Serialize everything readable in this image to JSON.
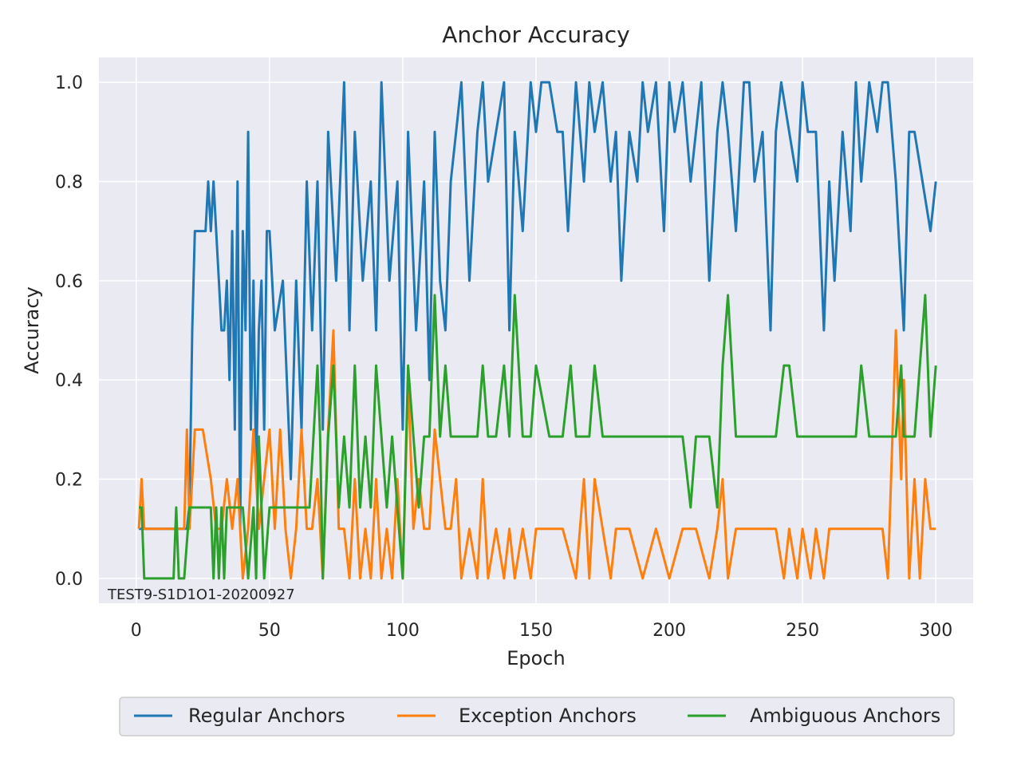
{
  "chart_data": {
    "type": "line",
    "title": "Anchor Accuracy",
    "xlabel": "Epoch",
    "ylabel": "Accuracy",
    "xlim": [
      -14,
      314
    ],
    "ylim": [
      -0.05,
      1.05
    ],
    "xticks": [
      0,
      50,
      100,
      150,
      200,
      250,
      300
    ],
    "yticks": [
      0.0,
      0.2,
      0.4,
      0.6,
      0.8,
      1.0
    ],
    "xtick_labels": [
      "0",
      "50",
      "100",
      "150",
      "200",
      "250",
      "300"
    ],
    "ytick_labels": [
      "0.0",
      "0.2",
      "0.4",
      "0.6",
      "0.8",
      "1.0"
    ],
    "grid": true,
    "legend_position": "bottom-center",
    "annotation": "TEST9-S1D1O1-20200927",
    "background": "#eaeaf2",
    "series": [
      {
        "name": "Regular Anchors",
        "color": "#1f77b4",
        "x": [
          1,
          3,
          6,
          10,
          14,
          16,
          18,
          19,
          20,
          21,
          22,
          23,
          24,
          25,
          26,
          27,
          28,
          29,
          30,
          31,
          32,
          33,
          34,
          35,
          36,
          37,
          38,
          39,
          40,
          41,
          42,
          43,
          44,
          45,
          46,
          47,
          48,
          49,
          50,
          52,
          55,
          58,
          60,
          62,
          64,
          66,
          68,
          70,
          72,
          75,
          78,
          80,
          82,
          85,
          88,
          90,
          92,
          95,
          98,
          100,
          102,
          105,
          108,
          110,
          112,
          114,
          116,
          118,
          120,
          122,
          125,
          128,
          130,
          132,
          135,
          138,
          140,
          142,
          145,
          148,
          150,
          152,
          155,
          158,
          160,
          162,
          165,
          168,
          170,
          172,
          175,
          178,
          180,
          182,
          185,
          188,
          190,
          192,
          195,
          198,
          200,
          202,
          205,
          208,
          210,
          212,
          215,
          218,
          220,
          222,
          225,
          228,
          230,
          232,
          235,
          238,
          240,
          242,
          245,
          248,
          250,
          252,
          255,
          258,
          260,
          262,
          265,
          268,
          270,
          272,
          275,
          278,
          280,
          282,
          285,
          288,
          290,
          292,
          295,
          298,
          300
        ],
        "y": [
          0.1,
          0.1,
          0.1,
          0.1,
          0.1,
          0.1,
          0.1,
          0.1,
          0.15,
          0.5,
          0.7,
          0.7,
          0.7,
          0.7,
          0.7,
          0.8,
          0.7,
          0.8,
          0.7,
          0.6,
          0.5,
          0.5,
          0.6,
          0.4,
          0.7,
          0.3,
          0.8,
          0.1,
          0.7,
          0.5,
          0.9,
          0.3,
          0.6,
          0.2,
          0.5,
          0.6,
          0.3,
          0.7,
          0.7,
          0.5,
          0.6,
          0.2,
          0.6,
          0.3,
          0.8,
          0.5,
          0.8,
          0.3,
          0.9,
          0.6,
          1.0,
          0.5,
          0.9,
          0.6,
          0.8,
          0.5,
          1.0,
          0.6,
          0.8,
          0.3,
          0.9,
          0.5,
          0.8,
          0.4,
          0.9,
          0.6,
          0.5,
          0.8,
          0.9,
          1.0,
          0.6,
          0.9,
          1.0,
          0.8,
          0.9,
          1.0,
          0.5,
          0.9,
          0.7,
          1.0,
          0.9,
          1.0,
          1.0,
          0.9,
          0.9,
          0.7,
          1.0,
          0.8,
          1.0,
          0.9,
          1.0,
          0.8,
          0.9,
          0.6,
          0.9,
          0.8,
          1.0,
          0.9,
          1.0,
          0.7,
          1.0,
          0.9,
          1.0,
          0.8,
          0.9,
          1.0,
          0.6,
          0.9,
          1.0,
          0.9,
          0.7,
          1.0,
          1.0,
          0.8,
          0.9,
          0.5,
          0.9,
          1.0,
          0.9,
          0.8,
          1.0,
          0.9,
          0.9,
          0.5,
          0.8,
          0.6,
          0.9,
          0.7,
          1.0,
          0.8,
          1.0,
          0.9,
          1.0,
          1.0,
          0.8,
          0.5,
          0.9,
          0.9,
          0.8,
          0.7,
          0.8
        ]
      },
      {
        "name": "Exception Anchors",
        "color": "#ff7f0e",
        "x": [
          1,
          2,
          3,
          5,
          10,
          14,
          16,
          18,
          19,
          20,
          22,
          25,
          28,
          30,
          32,
          34,
          36,
          38,
          40,
          42,
          44,
          46,
          48,
          50,
          52,
          54,
          56,
          58,
          60,
          62,
          64,
          66,
          68,
          70,
          72,
          74,
          76,
          78,
          80,
          82,
          84,
          86,
          88,
          90,
          92,
          94,
          96,
          98,
          100,
          102,
          104,
          106,
          108,
          110,
          112,
          114,
          116,
          118,
          120,
          122,
          125,
          128,
          130,
          132,
          135,
          138,
          140,
          142,
          145,
          148,
          150,
          155,
          160,
          165,
          168,
          170,
          172,
          175,
          178,
          180,
          185,
          190,
          195,
          200,
          205,
          210,
          215,
          218,
          220,
          222,
          225,
          230,
          235,
          240,
          243,
          245,
          248,
          250,
          253,
          255,
          258,
          260,
          265,
          270,
          275,
          280,
          282,
          285,
          287,
          288,
          290,
          292,
          294,
          296,
          298,
          300
        ],
        "y": [
          0.1,
          0.2,
          0.1,
          0.1,
          0.1,
          0.1,
          0.1,
          0.1,
          0.3,
          0.1,
          0.3,
          0.3,
          0.2,
          0.1,
          0.1,
          0.2,
          0.1,
          0.2,
          0.0,
          0.1,
          0.3,
          0.1,
          0.2,
          0.3,
          0.1,
          0.3,
          0.1,
          0.0,
          0.1,
          0.3,
          0.1,
          0.1,
          0.2,
          0.0,
          0.3,
          0.5,
          0.1,
          0.1,
          0.0,
          0.2,
          0.0,
          0.1,
          0.0,
          0.2,
          0.0,
          0.1,
          0.0,
          0.2,
          0.0,
          0.4,
          0.1,
          0.2,
          0.1,
          0.1,
          0.3,
          0.2,
          0.1,
          0.1,
          0.2,
          0.0,
          0.1,
          0.0,
          0.2,
          0.0,
          0.1,
          0.0,
          0.1,
          0.0,
          0.1,
          0.0,
          0.1,
          0.1,
          0.1,
          0.0,
          0.2,
          0.0,
          0.2,
          0.1,
          0.0,
          0.1,
          0.1,
          0.0,
          0.1,
          0.0,
          0.1,
          0.1,
          0.0,
          0.1,
          0.2,
          0.0,
          0.1,
          0.1,
          0.1,
          0.1,
          0.0,
          0.1,
          0.0,
          0.1,
          0.0,
          0.1,
          0.0,
          0.1,
          0.1,
          0.1,
          0.1,
          0.1,
          0.0,
          0.5,
          0.2,
          0.4,
          0.0,
          0.2,
          0.0,
          0.2,
          0.1,
          0.1
        ]
      },
      {
        "name": "Ambiguous Anchors",
        "color": "#2ca02c",
        "x": [
          1,
          2,
          3,
          10,
          14,
          15,
          16,
          18,
          20,
          25,
          28,
          29,
          30,
          31,
          32,
          33,
          34,
          35,
          40,
          42,
          44,
          45,
          46,
          48,
          50,
          52,
          55,
          60,
          65,
          68,
          69,
          70,
          72,
          74,
          76,
          78,
          80,
          82,
          84,
          86,
          88,
          90,
          92,
          94,
          96,
          98,
          100,
          102,
          104,
          106,
          108,
          110,
          112,
          114,
          116,
          118,
          120,
          125,
          128,
          130,
          132,
          135,
          138,
          140,
          142,
          145,
          148,
          150,
          155,
          160,
          163,
          165,
          168,
          170,
          172,
          175,
          180,
          185,
          190,
          195,
          200,
          205,
          208,
          210,
          212,
          215,
          218,
          220,
          222,
          225,
          228,
          230,
          232,
          235,
          238,
          240,
          243,
          245,
          248,
          250,
          252,
          255,
          258,
          260,
          265,
          270,
          272,
          275,
          280,
          285,
          287,
          288,
          290,
          292,
          294,
          296,
          298,
          300
        ],
        "y": [
          0.143,
          0.143,
          0.0,
          0.0,
          0.0,
          0.143,
          0.0,
          0.0,
          0.143,
          0.143,
          0.143,
          0.0,
          0.143,
          0.0,
          0.143,
          0.0,
          0.143,
          0.143,
          0.143,
          0.0,
          0.143,
          0.0,
          0.286,
          0.0,
          0.143,
          0.143,
          0.143,
          0.143,
          0.143,
          0.429,
          0.286,
          0.0,
          0.286,
          0.429,
          0.143,
          0.286,
          0.143,
          0.429,
          0.143,
          0.286,
          0.143,
          0.429,
          0.286,
          0.143,
          0.286,
          0.143,
          0.0,
          0.429,
          0.286,
          0.143,
          0.286,
          0.286,
          0.571,
          0.286,
          0.429,
          0.286,
          0.286,
          0.286,
          0.286,
          0.429,
          0.286,
          0.286,
          0.429,
          0.286,
          0.571,
          0.286,
          0.286,
          0.429,
          0.286,
          0.286,
          0.429,
          0.286,
          0.286,
          0.286,
          0.429,
          0.286,
          0.286,
          0.286,
          0.286,
          0.286,
          0.286,
          0.286,
          0.143,
          0.286,
          0.286,
          0.286,
          0.143,
          0.429,
          0.571,
          0.286,
          0.286,
          0.286,
          0.286,
          0.286,
          0.286,
          0.286,
          0.429,
          0.429,
          0.286,
          0.286,
          0.286,
          0.286,
          0.286,
          0.286,
          0.286,
          0.286,
          0.429,
          0.286,
          0.286,
          0.286,
          0.429,
          0.286,
          0.286,
          0.286,
          0.429,
          0.571,
          0.286,
          0.429
        ]
      }
    ]
  }
}
